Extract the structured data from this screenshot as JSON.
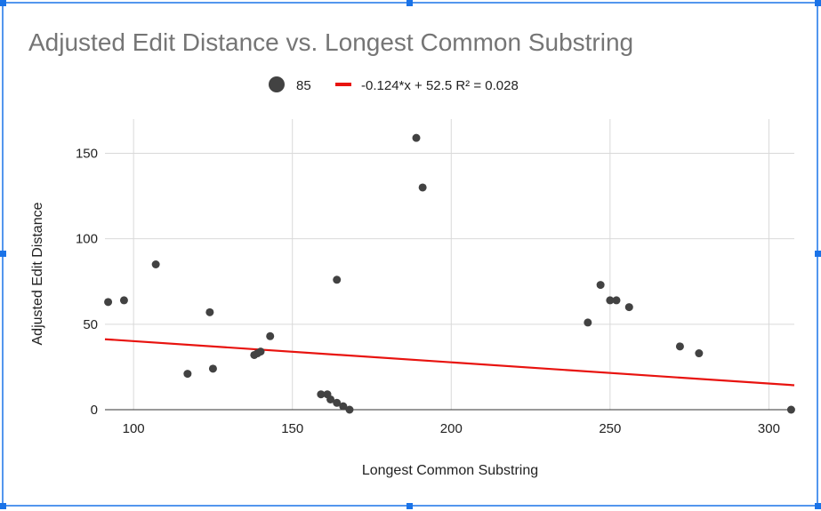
{
  "chart_data": {
    "type": "scatter",
    "title": "Adjusted Edit Distance vs. Longest Common Substring",
    "xlabel": "Longest Common Substring",
    "ylabel": "Adjusted Edit Distance",
    "xlim": [
      91,
      308
    ],
    "ylim": [
      0,
      170
    ],
    "xticks": [
      100,
      150,
      200,
      250,
      300
    ],
    "yticks": [
      0,
      50,
      100,
      150
    ],
    "grid": true,
    "legend_position": "top",
    "colors": {
      "points": "#424242",
      "trendline": "#e8130f",
      "grid": "#d9d9d9",
      "title": "#757575",
      "selection": "#1a73e8"
    },
    "series": [
      {
        "name": "85",
        "points": [
          {
            "x": 92,
            "y": 63
          },
          {
            "x": 97,
            "y": 64
          },
          {
            "x": 107,
            "y": 85
          },
          {
            "x": 117,
            "y": 21
          },
          {
            "x": 124,
            "y": 57
          },
          {
            "x": 125,
            "y": 24
          },
          {
            "x": 138,
            "y": 32
          },
          {
            "x": 139,
            "y": 33
          },
          {
            "x": 140,
            "y": 34
          },
          {
            "x": 143,
            "y": 43
          },
          {
            "x": 159,
            "y": 9
          },
          {
            "x": 161,
            "y": 9
          },
          {
            "x": 162,
            "y": 6
          },
          {
            "x": 164,
            "y": 76
          },
          {
            "x": 164,
            "y": 4
          },
          {
            "x": 166,
            "y": 2
          },
          {
            "x": 168,
            "y": 0
          },
          {
            "x": 189,
            "y": 159
          },
          {
            "x": 191,
            "y": 130
          },
          {
            "x": 243,
            "y": 51
          },
          {
            "x": 247,
            "y": 73
          },
          {
            "x": 250,
            "y": 64
          },
          {
            "x": 252,
            "y": 64
          },
          {
            "x": 256,
            "y": 60
          },
          {
            "x": 272,
            "y": 37
          },
          {
            "x": 278,
            "y": 33
          },
          {
            "x": 307,
            "y": 0
          }
        ]
      }
    ],
    "trendline": {
      "label": "-0.124*x + 52.5 R² = 0.028",
      "slope": -0.124,
      "intercept": 52.5,
      "x_range": [
        91,
        308
      ]
    }
  }
}
